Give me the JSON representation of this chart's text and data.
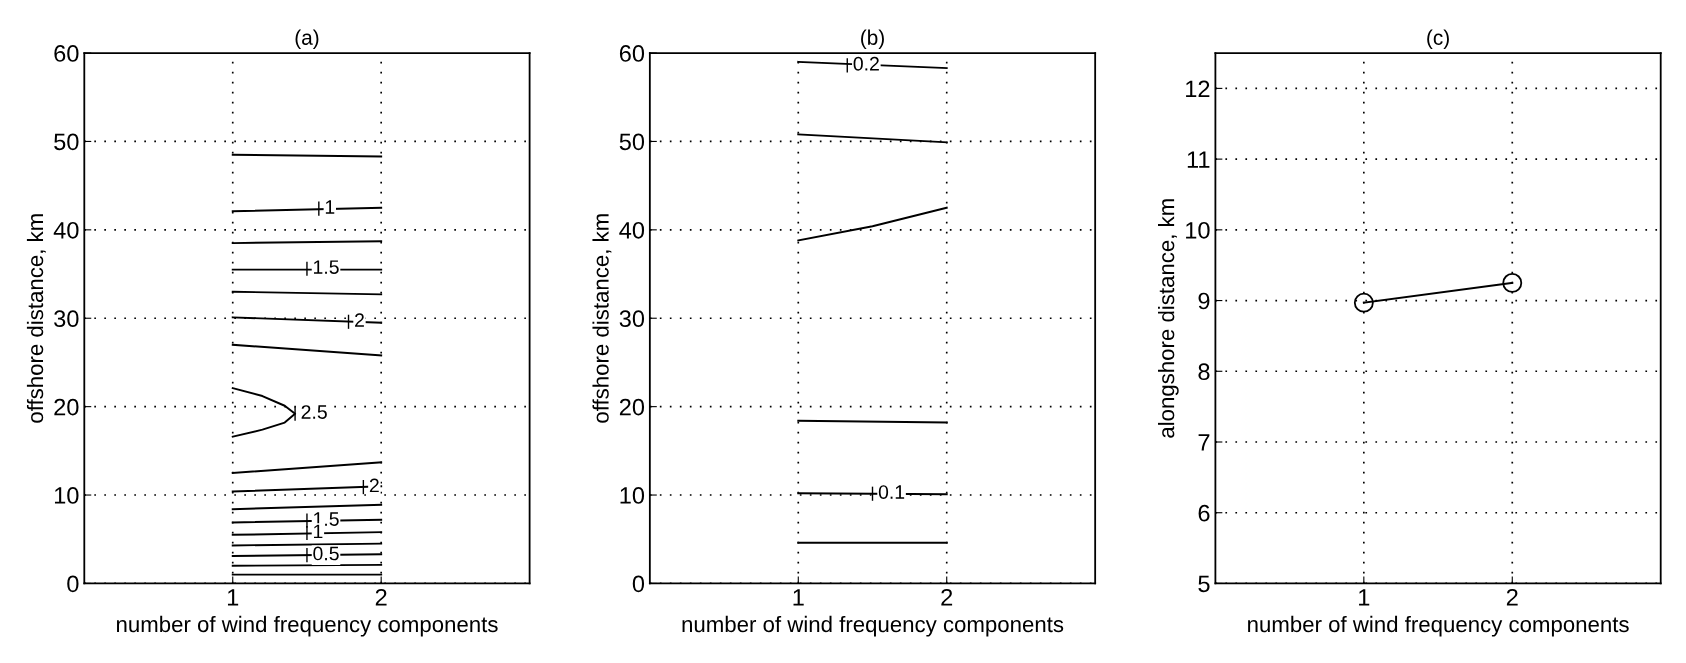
{
  "chart_data": [
    {
      "type": "line",
      "title": "(a)",
      "xlabel": "number of wind frequency components",
      "ylabel": "offshore distance, km",
      "xlim": [
        0,
        3
      ],
      "xticks": [
        1,
        2
      ],
      "ylim": [
        0,
        60
      ],
      "yticks": [
        0,
        10,
        20,
        30,
        40,
        50,
        60
      ],
      "grid": true,
      "line_style": "solid",
      "marker": "none",
      "series": [
        {
          "color": "#000000",
          "x": [
            1,
            2
          ],
          "values": [
            48.5,
            48.3
          ]
        },
        {
          "color": "#000000",
          "x": [
            1,
            2
          ],
          "values": [
            42.1,
            42.5
          ]
        },
        {
          "color": "#000000",
          "x": [
            1,
            2
          ],
          "values": [
            38.5,
            38.7
          ]
        },
        {
          "color": "#000000",
          "x": [
            1,
            2
          ],
          "values": [
            35.5,
            35.5
          ]
        },
        {
          "color": "#000000",
          "x": [
            1,
            2
          ],
          "values": [
            33.0,
            32.7
          ]
        },
        {
          "color": "#000000",
          "x": [
            1,
            2
          ],
          "values": [
            30.1,
            29.5
          ]
        },
        {
          "color": "#000000",
          "x": [
            1,
            2
          ],
          "values": [
            27.0,
            25.8
          ]
        },
        {
          "color": "#000000",
          "x": [
            1,
            1.2,
            1.35,
            1.42,
            1.35,
            1.2,
            1
          ],
          "values": [
            22.1,
            21.2,
            20.1,
            19.2,
            18.2,
            17.4,
            16.6
          ]
        },
        {
          "color": "#000000",
          "x": [
            1,
            2
          ],
          "values": [
            12.5,
            13.7
          ]
        },
        {
          "color": "#000000",
          "x": [
            1,
            2
          ],
          "values": [
            10.4,
            11.0
          ]
        },
        {
          "color": "#000000",
          "x": [
            1,
            2
          ],
          "values": [
            8.4,
            8.9
          ]
        },
        {
          "color": "#000000",
          "x": [
            1,
            2
          ],
          "values": [
            6.9,
            7.2
          ]
        },
        {
          "color": "#000000",
          "x": [
            1,
            2
          ],
          "values": [
            5.5,
            5.8
          ]
        },
        {
          "color": "#000000",
          "x": [
            1,
            2
          ],
          "values": [
            4.3,
            4.5
          ]
        },
        {
          "color": "#000000",
          "x": [
            1,
            2
          ],
          "values": [
            3.1,
            3.3
          ]
        },
        {
          "color": "#000000",
          "x": [
            1,
            2
          ],
          "values": [
            2.0,
            2.1
          ]
        },
        {
          "color": "#000000",
          "x": [
            1,
            2
          ],
          "values": [
            1.0,
            1.0
          ]
        }
      ],
      "annotations": [
        {
          "text": "1",
          "x": 1.58,
          "y": 42.4
        },
        {
          "text": "1.5",
          "x": 1.5,
          "y": 35.6
        },
        {
          "text": "2",
          "x": 1.78,
          "y": 29.6
        },
        {
          "text": "2.5",
          "x": 1.42,
          "y": 19.2
        },
        {
          "text": "2",
          "x": 1.88,
          "y": 10.9
        },
        {
          "text": "1.5",
          "x": 1.5,
          "y": 7.1
        },
        {
          "text": "1",
          "x": 1.5,
          "y": 5.7
        },
        {
          "text": "0.5",
          "x": 1.5,
          "y": 3.2
        }
      ]
    },
    {
      "type": "line",
      "title": "(b)",
      "xlabel": "number of wind frequency components",
      "ylabel": "offshore distance, km",
      "xlim": [
        0,
        3
      ],
      "xticks": [
        1,
        2
      ],
      "ylim": [
        0,
        60
      ],
      "yticks": [
        0,
        10,
        20,
        30,
        40,
        50,
        60
      ],
      "grid": true,
      "line_style": "solid",
      "marker": "none",
      "series": [
        {
          "color": "#000000",
          "x": [
            1,
            2
          ],
          "values": [
            59.0,
            58.3
          ]
        },
        {
          "color": "#000000",
          "x": [
            1,
            2
          ],
          "values": [
            50.8,
            49.9
          ]
        },
        {
          "color": "#000000",
          "x": [
            1,
            1.5,
            2
          ],
          "values": [
            38.8,
            40.4,
            42.5
          ]
        },
        {
          "color": "#000000",
          "x": [
            1,
            2
          ],
          "values": [
            18.4,
            18.2
          ]
        },
        {
          "color": "#000000",
          "x": [
            1,
            2
          ],
          "values": [
            10.2,
            10.1
          ]
        },
        {
          "color": "#000000",
          "x": [
            1,
            2
          ],
          "values": [
            4.6,
            4.6
          ]
        }
      ],
      "annotations": [
        {
          "text": "0.2",
          "x": 1.33,
          "y": 58.6
        },
        {
          "text": "0.1",
          "x": 1.5,
          "y": 10.15
        }
      ]
    },
    {
      "type": "line",
      "title": "(c)",
      "xlabel": "number of wind frequency components",
      "ylabel": "alongshore distance, km",
      "xlim": [
        0,
        3
      ],
      "xticks": [
        1,
        2
      ],
      "ylim": [
        5,
        12.5
      ],
      "yticks": [
        5,
        6,
        7,
        8,
        9,
        10,
        11,
        12
      ],
      "grid": true,
      "line_style": "solid",
      "marker": "circle",
      "series": [
        {
          "color": "#000000",
          "x": [
            1,
            2
          ],
          "values": [
            8.97,
            9.25
          ]
        }
      ]
    }
  ]
}
